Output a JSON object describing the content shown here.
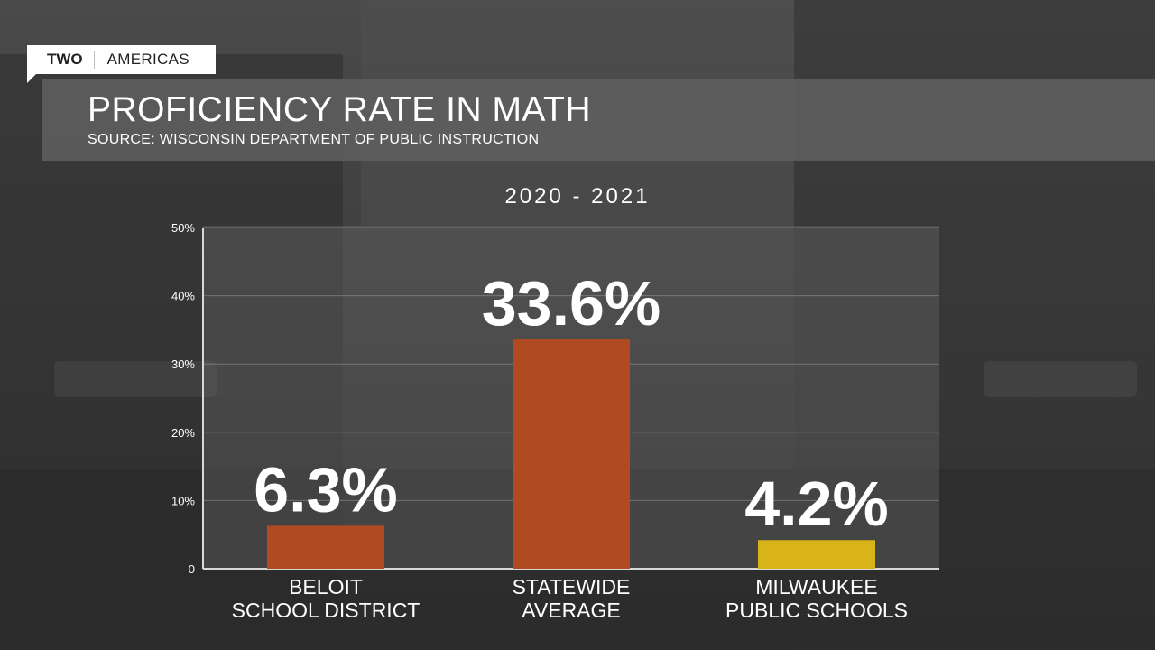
{
  "tag": {
    "first": "TWO",
    "second": "AMERICAS"
  },
  "header": {
    "title": "PROFICIENCY RATE IN MATH",
    "subtitle": "SOURCE: WISCONSIN DEPARTMENT OF PUBLIC INSTRUCTION"
  },
  "chart_data": {
    "type": "bar",
    "title": "2020 - 2021",
    "categories": [
      [
        "BELOIT",
        "SCHOOL DISTRICT"
      ],
      [
        "STATEWIDE",
        "AVERAGE"
      ],
      [
        "MILWAUKEE",
        "PUBLIC SCHOOLS"
      ]
    ],
    "values": [
      6.3,
      33.6,
      4.2
    ],
    "value_labels": [
      "6.3%",
      "33.6%",
      "4.2%"
    ],
    "colors": [
      "#b04a22",
      "#b04a22",
      "#d9b419"
    ],
    "ylim": [
      0,
      50
    ],
    "yticks": [
      0,
      10,
      20,
      30,
      40,
      50
    ],
    "ytick_labels": [
      "0",
      "10%",
      "20%",
      "30%",
      "40%",
      "50%"
    ],
    "grid": true
  }
}
